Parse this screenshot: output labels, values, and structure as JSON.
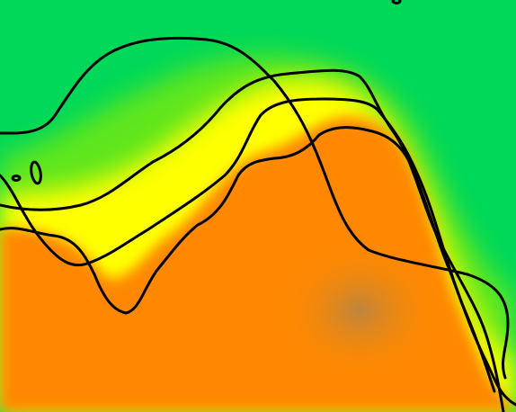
{
  "map": {
    "colors": {
      "low": "#00d85a",
      "mid_low": "#5ee61a",
      "mid": "#ffff00",
      "mid_high": "#ffaa00",
      "high": "#ff8800",
      "peak": "#c8843c",
      "contour": "#000000"
    },
    "contour_count": 5
  }
}
